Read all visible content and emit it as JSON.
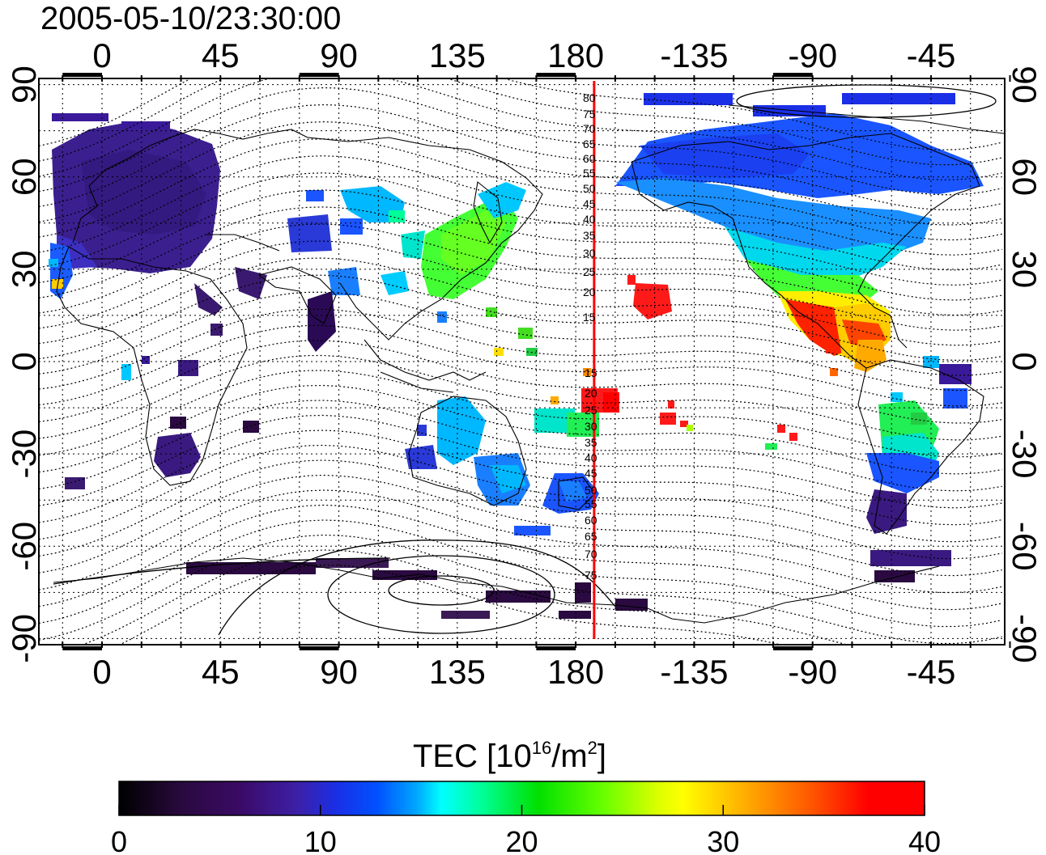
{
  "timestamp": "2005-05-10/23:30:00",
  "axes": {
    "lon_ticks": [
      "0",
      "45",
      "90",
      "135",
      "180",
      "-135",
      "-90",
      "-45"
    ],
    "lon_values": [
      0,
      45,
      90,
      135,
      180,
      225,
      270,
      315
    ],
    "lat_ticks": [
      "90",
      "60",
      "30",
      "0",
      "-30",
      "-60",
      "-90"
    ],
    "lat_values": [
      90,
      60,
      30,
      0,
      -30,
      -60,
      -90
    ],
    "lon_range": [
      -24,
      343
    ],
    "lat_range": [
      -92,
      92
    ]
  },
  "terminator_longitude": 187,
  "contour_labels_north": [
    "80",
    "75",
    "70",
    "65",
    "60",
    "55",
    "50",
    "45",
    "40",
    "35",
    "30",
    "25",
    "20",
    "15"
  ],
  "contour_labels_south": [
    "15",
    "20",
    "25",
    "30",
    "35",
    "40",
    "45",
    "50",
    "55",
    "60",
    "65",
    "70",
    "75"
  ],
  "colorbar": {
    "title_main": "TEC  [10",
    "title_exp1": "16",
    "title_mid": "/m",
    "title_exp2": "2",
    "title_end": "]",
    "tick_labels": [
      "0",
      "10",
      "20",
      "30",
      "40"
    ],
    "tick_values": [
      0,
      10,
      20,
      30,
      40
    ],
    "range": [
      0,
      40
    ],
    "colors": [
      "#000000",
      "#3a0a55",
      "#3d1f9e",
      "#1a2fe6",
      "#0050ff",
      "#00a8ff",
      "#00ffff",
      "#00ff88",
      "#00e000",
      "#aaff00",
      "#ffff00",
      "#ffaa00",
      "#ff5000",
      "#ff0000"
    ]
  }
}
